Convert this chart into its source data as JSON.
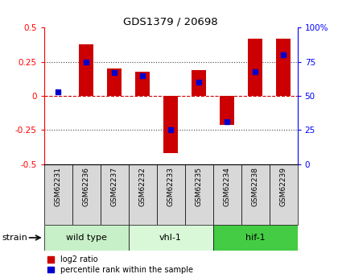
{
  "title": "GDS1379 / 20698",
  "samples": [
    "GSM62231",
    "GSM62236",
    "GSM62237",
    "GSM62232",
    "GSM62233",
    "GSM62235",
    "GSM62234",
    "GSM62238",
    "GSM62239"
  ],
  "log2_ratio": [
    0.0,
    0.38,
    0.2,
    0.18,
    -0.42,
    0.19,
    -0.21,
    0.42,
    0.42
  ],
  "percentile_rank": [
    53,
    75,
    67,
    65,
    25,
    60,
    31,
    68,
    80
  ],
  "groups": [
    {
      "label": "wild type",
      "start": 0,
      "end": 3,
      "color": "#c8f0c8"
    },
    {
      "label": "vhl-1",
      "start": 3,
      "end": 6,
      "color": "#d8f8d8"
    },
    {
      "label": "hif-1",
      "start": 6,
      "end": 9,
      "color": "#44cc44"
    }
  ],
  "ylim_left": [
    -0.5,
    0.5
  ],
  "ylim_right": [
    0,
    100
  ],
  "bar_color_red": "#cc0000",
  "bar_color_blue": "#0000cc",
  "bg_color": "#d8d8d8",
  "zero_line_color": "#cc0000",
  "dotted_line_color": "#444444",
  "bar_width": 0.5,
  "legend_labels": [
    "log2 ratio",
    "percentile rank within the sample"
  ]
}
